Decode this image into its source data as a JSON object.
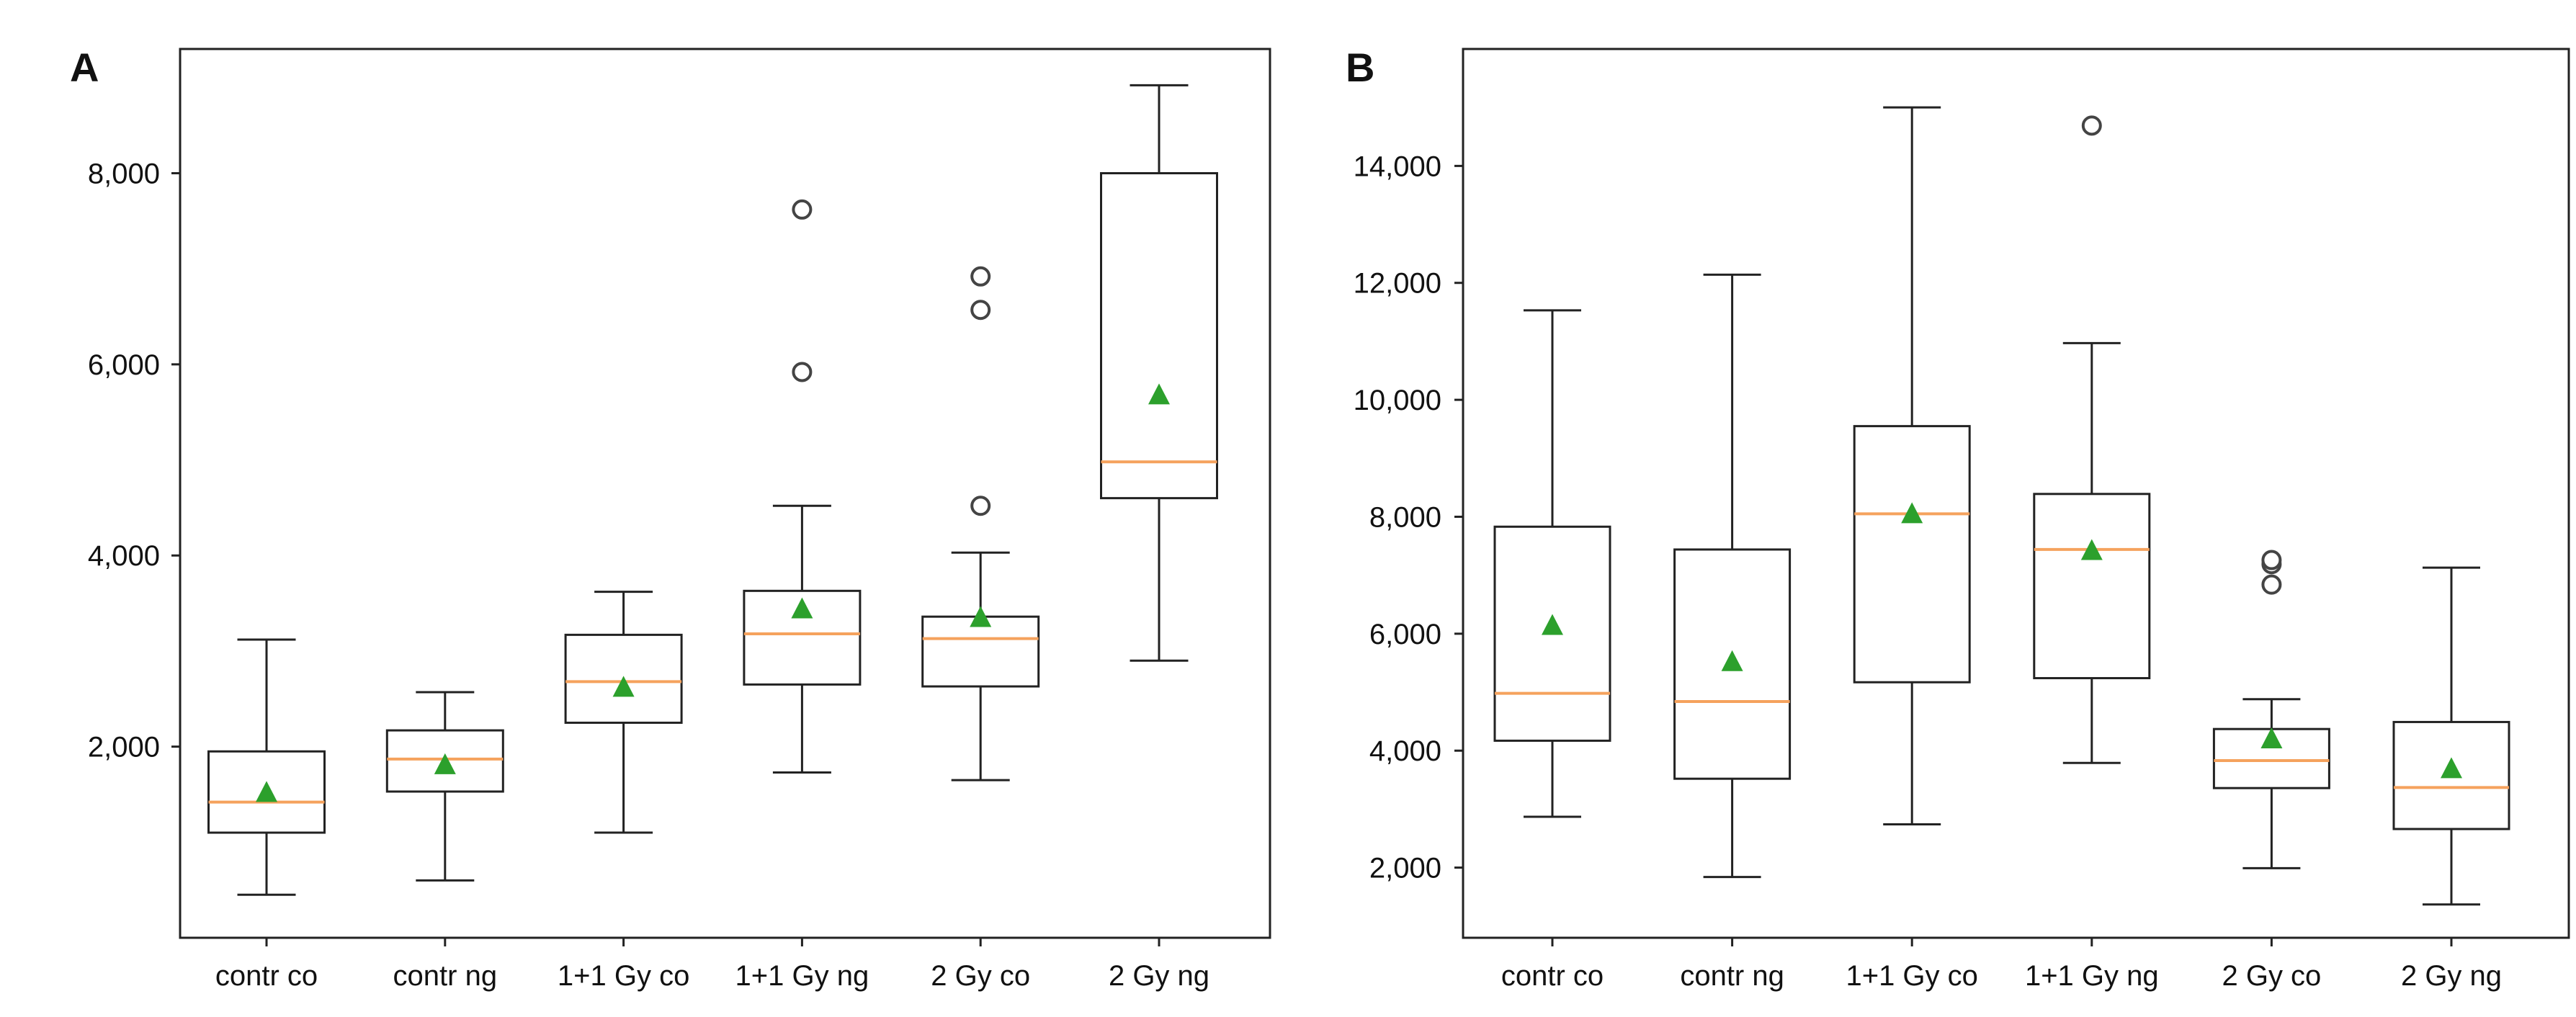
{
  "chart_data": [
    {
      "type": "box",
      "panel_label": "A",
      "categories": [
        "contr co",
        "contr ng",
        "1+1 Gy co",
        "1+1 Gy ng",
        "2 Gy co",
        "2 Gy ng"
      ],
      "ylim": [
        0,
        9300
      ],
      "yticks": [
        2000,
        4000,
        6000,
        8000
      ],
      "ytick_labels": [
        "2,000",
        "4,000",
        "6,000",
        "8,000"
      ],
      "grid": false,
      "colors": {
        "median": "#f5a25d",
        "mean": "#2ca02c",
        "box": "#222222"
      },
      "boxes": [
        {
          "whisker_low": 450,
          "q1": 1100,
          "median": 1420,
          "q3": 1950,
          "whisker_high": 3120,
          "mean": 1520,
          "outliers": []
        },
        {
          "whisker_low": 600,
          "q1": 1530,
          "median": 1870,
          "q3": 2170,
          "whisker_high": 2570,
          "mean": 1810,
          "outliers": []
        },
        {
          "whisker_low": 1100,
          "q1": 2250,
          "median": 2680,
          "q3": 3170,
          "whisker_high": 3620,
          "mean": 2620,
          "outliers": []
        },
        {
          "whisker_low": 1730,
          "q1": 2650,
          "median": 3180,
          "q3": 3630,
          "whisker_high": 4520,
          "mean": 3440,
          "outliers": [
            5920,
            7620
          ]
        },
        {
          "whisker_low": 1650,
          "q1": 2630,
          "median": 3130,
          "q3": 3360,
          "whisker_high": 4030,
          "mean": 3350,
          "outliers": [
            4520,
            6570,
            6920
          ]
        },
        {
          "whisker_low": 2900,
          "q1": 4600,
          "median": 4980,
          "q3": 8000,
          "whisker_high": 8920,
          "mean": 5680,
          "outliers": []
        }
      ]
    },
    {
      "type": "box",
      "panel_label": "B",
      "categories": [
        "contr co",
        "contr ng",
        "1+1 Gy co",
        "1+1 Gy ng",
        "2 Gy co",
        "2 Gy ng"
      ],
      "ylim": [
        800,
        16000
      ],
      "yticks": [
        2000,
        4000,
        6000,
        8000,
        10000,
        12000,
        14000
      ],
      "ytick_labels": [
        "2,000",
        "4,000",
        "6,000",
        "8,000",
        "10,000",
        "12,000",
        "14,000"
      ],
      "grid": false,
      "colors": {
        "median": "#f5a25d",
        "mean": "#2ca02c",
        "box": "#222222"
      },
      "boxes": [
        {
          "whisker_low": 2870,
          "q1": 4170,
          "median": 4980,
          "q3": 7830,
          "whisker_high": 11530,
          "mean": 6140,
          "outliers": []
        },
        {
          "whisker_low": 1840,
          "q1": 3520,
          "median": 4840,
          "q3": 7440,
          "whisker_high": 12140,
          "mean": 5520,
          "outliers": []
        },
        {
          "whisker_low": 2740,
          "q1": 5170,
          "median": 8050,
          "q3": 9550,
          "whisker_high": 15000,
          "mean": 8050,
          "outliers": []
        },
        {
          "whisker_low": 3790,
          "q1": 5240,
          "median": 7440,
          "q3": 8390,
          "whisker_high": 10970,
          "mean": 7420,
          "outliers": [
            14690
          ]
        },
        {
          "whisker_low": 1990,
          "q1": 3360,
          "median": 3830,
          "q3": 4370,
          "whisker_high": 4880,
          "mean": 4200,
          "outliers": [
            6840,
            7190,
            7260
          ]
        },
        {
          "whisker_low": 1370,
          "q1": 2660,
          "median": 3370,
          "q3": 4490,
          "whisker_high": 7130,
          "mean": 3690,
          "outliers": []
        }
      ]
    }
  ]
}
